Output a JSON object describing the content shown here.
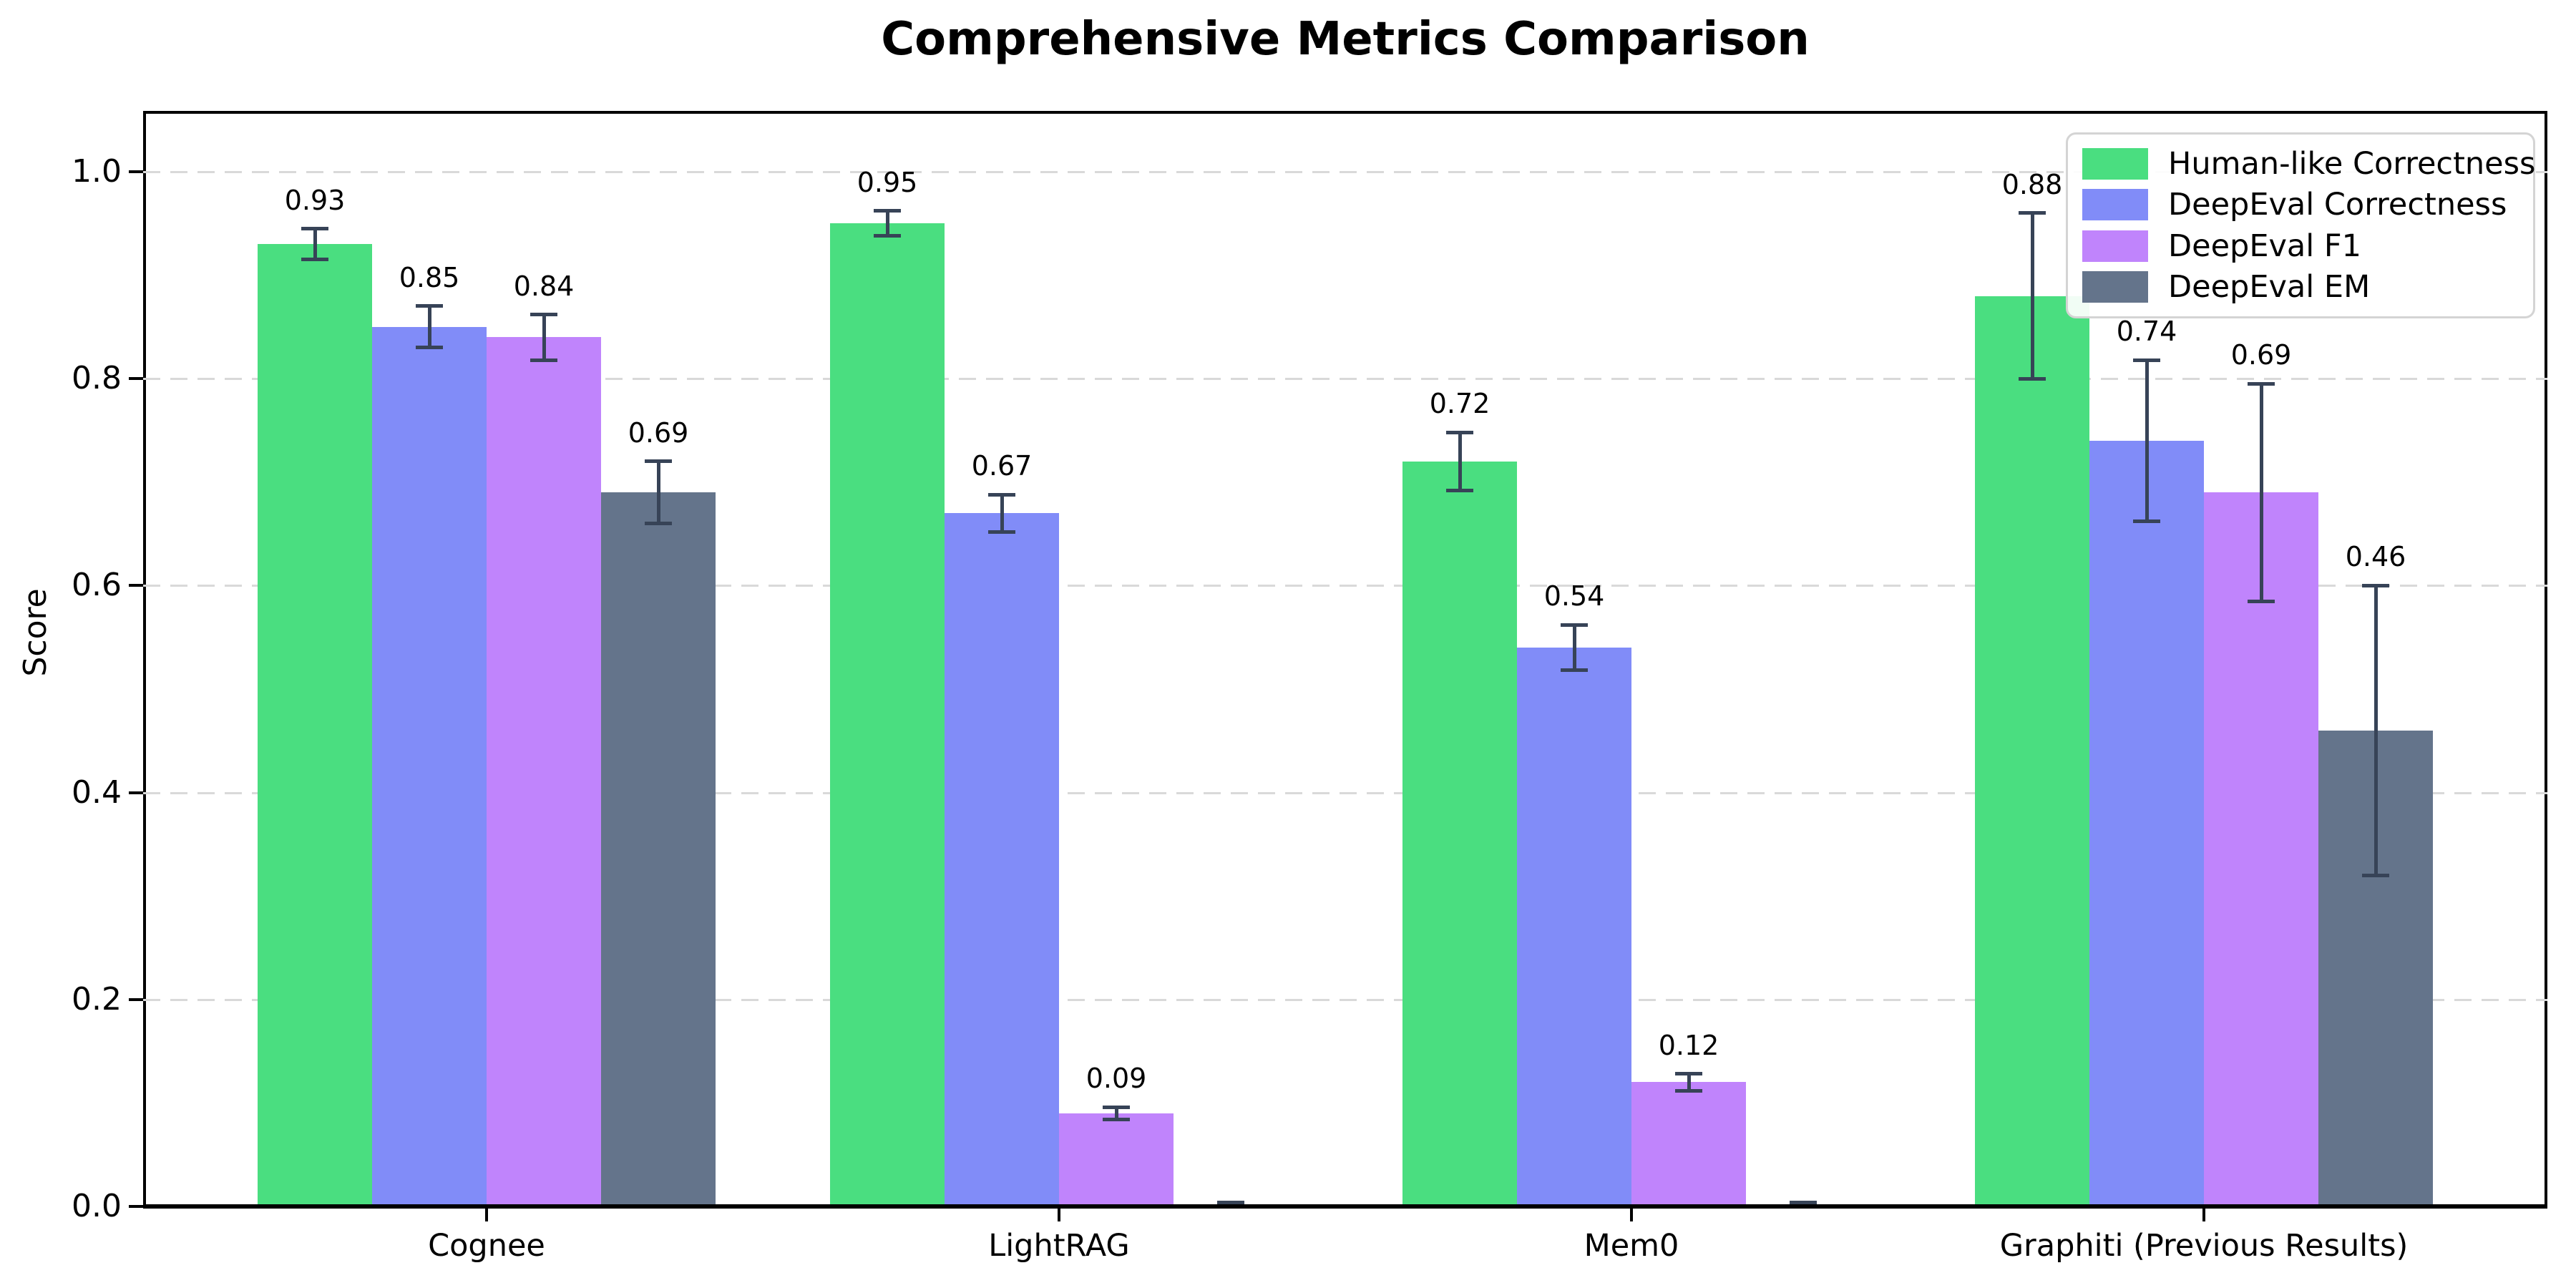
{
  "title": "Comprehensive Metrics Comparison",
  "axes": {
    "ylabel": "Score",
    "ytick_labels": [
      "0.0",
      "0.2",
      "0.4",
      "0.6",
      "0.8",
      "1.0"
    ]
  },
  "colors": {
    "grid": "#d9d9d9",
    "error_bar": "#374357",
    "axis": "#000000",
    "legend_border": "#d4d4d4"
  },
  "chart_data": {
    "type": "bar",
    "title": "Comprehensive Metrics Comparison",
    "xlabel": "",
    "ylabel": "Score",
    "categories": [
      "Cognee",
      "LightRAG",
      "Mem0",
      "Graphiti (Previous Results)"
    ],
    "series": [
      {
        "name": "Human-like Correctness",
        "color": "#4ade80",
        "values": [
          0.93,
          0.95,
          0.72,
          0.88
        ],
        "errors": [
          0.015,
          0.012,
          0.028,
          0.08
        ]
      },
      {
        "name": "DeepEval Correctness",
        "color": "#818cf8",
        "values": [
          0.85,
          0.67,
          0.54,
          0.74
        ],
        "errors": [
          0.02,
          0.018,
          0.022,
          0.078
        ]
      },
      {
        "name": "DeepEval F1",
        "color": "#c084fc",
        "values": [
          0.84,
          0.09,
          0.12,
          0.69
        ],
        "errors": [
          0.022,
          0.006,
          0.008,
          0.105
        ]
      },
      {
        "name": "DeepEval EM",
        "color": "#64748b",
        "values": [
          0.69,
          0.0,
          0.0,
          0.46
        ],
        "errors": [
          0.03,
          0.004,
          0.004,
          0.14
        ]
      }
    ],
    "bar_value_labels": {
      "Cognee": [
        "0.93",
        "0.85",
        "0.84",
        "0.69"
      ],
      "LightRAG": [
        "0.95",
        "0.67",
        "0.09",
        null
      ],
      "Mem0": [
        "0.72",
        "0.54",
        "0.12",
        null
      ],
      "Graphiti (Previous Results)": [
        "0.88",
        "0.74",
        "0.69",
        "0.46"
      ]
    },
    "yticks": [
      0.0,
      0.2,
      0.4,
      0.6,
      0.8,
      1.0
    ],
    "ylim": [
      0.0,
      1.058
    ],
    "grid": "horizontal-dashed",
    "legend_position": "upper right",
    "error_bars": true,
    "zero_height_bars_have_no_label": true
  }
}
